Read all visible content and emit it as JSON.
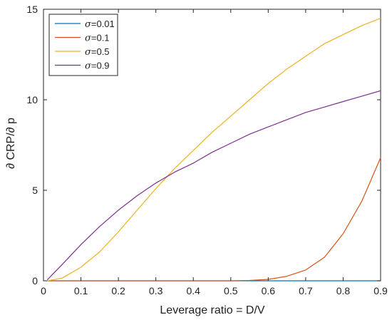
{
  "chart_data": {
    "type": "line",
    "xlabel": "Leverage ratio = D/V",
    "ylabel": "∂ CRP/∂ p",
    "xlim": [
      0,
      0.9
    ],
    "ylim": [
      0,
      15
    ],
    "xticks": [
      0,
      0.1,
      0.2,
      0.3,
      0.4,
      0.5,
      0.6,
      0.7,
      0.8,
      0.9
    ],
    "xtick_labels": [
      "0",
      "0.1",
      "0.2",
      "0.3",
      "0.4",
      "0.5",
      "0.6",
      "0.7",
      "0.8",
      "0.9"
    ],
    "yticks": [
      0,
      5,
      10,
      15
    ],
    "ytick_labels": [
      "0",
      "5",
      "10",
      "15"
    ],
    "grid": false,
    "legend_position": "top-left",
    "x": [
      0.01,
      0.05,
      0.1,
      0.15,
      0.2,
      0.25,
      0.3,
      0.35,
      0.4,
      0.45,
      0.5,
      0.55,
      0.6,
      0.65,
      0.7,
      0.75,
      0.8,
      0.85,
      0.9
    ],
    "series": [
      {
        "name": "σ=0.01",
        "legend_symbol": "σ",
        "legend_value": "=0.01",
        "color": "#0072BD",
        "values": [
          0,
          0,
          0,
          0,
          0,
          0,
          0,
          0,
          0,
          0,
          0,
          0,
          0,
          0,
          0,
          0,
          0,
          0,
          0
        ]
      },
      {
        "name": "σ=0.1",
        "legend_symbol": "σ",
        "legend_value": "=0.1",
        "color": "#D95319",
        "values": [
          0,
          0,
          0,
          0,
          0,
          0,
          0,
          0,
          0,
          0,
          0,
          0.02,
          0.08,
          0.25,
          0.6,
          1.3,
          2.6,
          4.4,
          6.8
        ]
      },
      {
        "name": "σ=0.5",
        "legend_symbol": "σ",
        "legend_value": "=0.5",
        "color": "#EDB120",
        "values": [
          0,
          0.15,
          0.75,
          1.6,
          2.7,
          3.9,
          5.1,
          6.2,
          7.2,
          8.2,
          9.1,
          10.0,
          10.9,
          11.7,
          12.4,
          13.1,
          13.6,
          14.1,
          14.5
        ]
      },
      {
        "name": "σ=0.9",
        "legend_symbol": "σ",
        "legend_value": "=0.9",
        "color": "#7E2F8E",
        "values": [
          0.05,
          0.9,
          2.0,
          3.0,
          3.9,
          4.7,
          5.4,
          6.0,
          6.5,
          7.1,
          7.6,
          8.1,
          8.5,
          8.9,
          9.3,
          9.6,
          9.9,
          10.2,
          10.5
        ]
      }
    ]
  }
}
